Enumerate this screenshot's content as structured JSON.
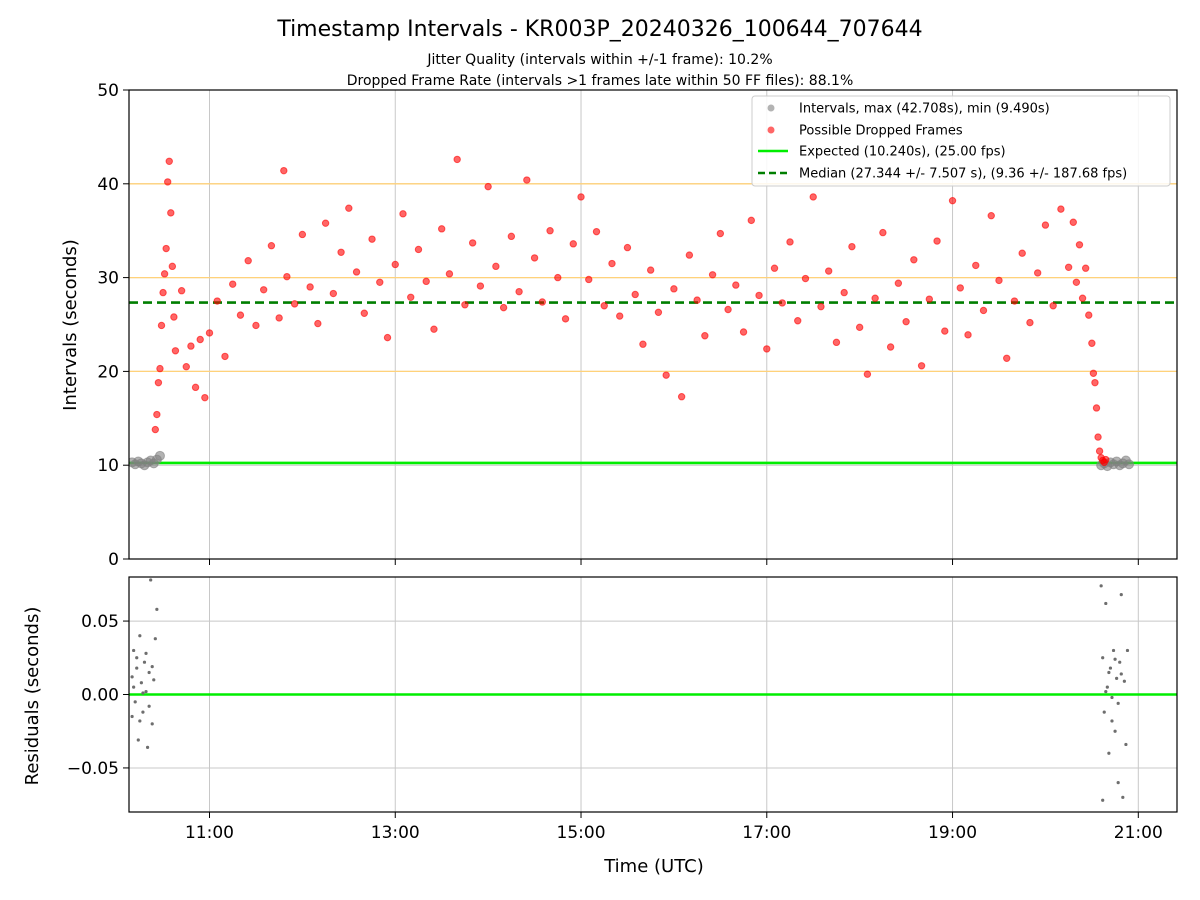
{
  "title": "Timestamp Intervals - KR003P_20240326_100644_707644",
  "subtitle1": "Jitter Quality (intervals within +/-1 frame): 10.2%",
  "subtitle2": "Dropped Frame Rate (intervals >1 frames late within 50 FF files): 88.1%",
  "colors": {
    "normal": "#808080",
    "dropped": "#ff0000",
    "expected": "#00ee00",
    "median": "#007f00",
    "threshold": "#ffd27a",
    "grid": "#c8c8c8"
  },
  "chart_data": [
    {
      "type": "scatter",
      "xlabel": "",
      "ylabel": "Intervals (seconds)",
      "ylim": [
        0,
        50
      ],
      "yticks": [
        "0",
        "10",
        "20",
        "30",
        "40",
        "50"
      ],
      "xlim": [
        "10:08",
        "21:25"
      ],
      "xticks": [
        "11:00",
        "13:00",
        "15:00",
        "17:00",
        "19:00",
        "21:00"
      ],
      "grid": true,
      "legend_position": "top-right",
      "legend": [
        "Intervals, max (42.708s), min (9.490s)",
        "Possible Dropped Frames",
        "Expected (10.240s), (25.00 fps)",
        "Median (27.344 +/- 7.507 s), (9.36 +/- 187.68 fps)"
      ],
      "expected_interval": 10.24,
      "median_interval": 27.344,
      "threshold_lines": [
        20,
        30,
        40
      ],
      "series": [
        {
          "name": "Intervals, max (42.708s), min (9.490s)",
          "points": [
            [
              "10:10",
              10.3
            ],
            [
              "10:12",
              10.1
            ],
            [
              "10:14",
              10.4
            ],
            [
              "10:16",
              10.2
            ],
            [
              "10:18",
              10.0
            ],
            [
              "10:20",
              10.3
            ],
            [
              "10:22",
              10.5
            ],
            [
              "10:24",
              10.2
            ],
            [
              "10:26",
              10.6
            ],
            [
              "10:28",
              11.0
            ],
            [
              "20:36",
              10.0
            ],
            [
              "20:38",
              10.2
            ],
            [
              "20:40",
              9.9
            ],
            [
              "20:42",
              10.3
            ],
            [
              "20:44",
              10.1
            ],
            [
              "20:46",
              10.4
            ],
            [
              "20:48",
              10.0
            ],
            [
              "20:50",
              10.2
            ],
            [
              "20:52",
              10.5
            ],
            [
              "20:54",
              10.1
            ]
          ]
        },
        {
          "name": "Possible Dropped Frames",
          "points": [
            [
              "10:25",
              13.8
            ],
            [
              "10:26",
              15.4
            ],
            [
              "10:27",
              18.8
            ],
            [
              "10:28",
              20.3
            ],
            [
              "10:29",
              24.9
            ],
            [
              "10:30",
              28.4
            ],
            [
              "10:31",
              30.4
            ],
            [
              "10:32",
              33.1
            ],
            [
              "10:33",
              40.2
            ],
            [
              "10:34",
              42.4
            ],
            [
              "10:35",
              36.9
            ],
            [
              "10:36",
              31.2
            ],
            [
              "10:37",
              25.8
            ],
            [
              "10:38",
              22.2
            ],
            [
              "10:42",
              28.6
            ],
            [
              "10:45",
              20.5
            ],
            [
              "10:48",
              22.7
            ],
            [
              "10:51",
              18.3
            ],
            [
              "10:54",
              23.4
            ],
            [
              "10:57",
              17.2
            ],
            [
              "11:00",
              24.1
            ],
            [
              "11:05",
              27.5
            ],
            [
              "11:10",
              21.6
            ],
            [
              "11:15",
              29.3
            ],
            [
              "11:20",
              26.0
            ],
            [
              "11:25",
              31.8
            ],
            [
              "11:30",
              24.9
            ],
            [
              "11:35",
              28.7
            ],
            [
              "11:40",
              33.4
            ],
            [
              "11:45",
              25.7
            ],
            [
              "11:48",
              41.4
            ],
            [
              "11:50",
              30.1
            ],
            [
              "11:55",
              27.2
            ],
            [
              "12:00",
              34.6
            ],
            [
              "12:05",
              29.0
            ],
            [
              "12:10",
              25.1
            ],
            [
              "12:15",
              35.8
            ],
            [
              "12:20",
              28.3
            ],
            [
              "12:25",
              32.7
            ],
            [
              "12:30",
              37.4
            ],
            [
              "12:35",
              30.6
            ],
            [
              "12:40",
              26.2
            ],
            [
              "12:45",
              34.1
            ],
            [
              "12:50",
              29.5
            ],
            [
              "12:55",
              23.6
            ],
            [
              "13:00",
              31.4
            ],
            [
              "13:05",
              36.8
            ],
            [
              "13:10",
              27.9
            ],
            [
              "13:15",
              33.0
            ],
            [
              "13:20",
              29.6
            ],
            [
              "13:25",
              24.5
            ],
            [
              "13:30",
              35.2
            ],
            [
              "13:35",
              30.4
            ],
            [
              "13:40",
              42.6
            ],
            [
              "13:45",
              27.1
            ],
            [
              "13:50",
              33.7
            ],
            [
              "13:55",
              29.1
            ],
            [
              "14:00",
              39.7
            ],
            [
              "14:05",
              31.2
            ],
            [
              "14:10",
              26.8
            ],
            [
              "14:15",
              34.4
            ],
            [
              "14:20",
              28.5
            ],
            [
              "14:25",
              40.4
            ],
            [
              "14:30",
              32.1
            ],
            [
              "14:35",
              27.4
            ],
            [
              "14:40",
              35.0
            ],
            [
              "14:45",
              30.0
            ],
            [
              "14:50",
              25.6
            ],
            [
              "14:55",
              33.6
            ],
            [
              "15:00",
              38.6
            ],
            [
              "15:05",
              29.8
            ],
            [
              "15:10",
              34.9
            ],
            [
              "15:15",
              27.0
            ],
            [
              "15:20",
              31.5
            ],
            [
              "15:25",
              25.9
            ],
            [
              "15:30",
              33.2
            ],
            [
              "15:35",
              28.2
            ],
            [
              "15:40",
              22.9
            ],
            [
              "15:45",
              30.8
            ],
            [
              "15:50",
              26.3
            ],
            [
              "15:55",
              19.6
            ],
            [
              "16:00",
              28.8
            ],
            [
              "16:05",
              17.3
            ],
            [
              "16:10",
              32.4
            ],
            [
              "16:15",
              27.6
            ],
            [
              "16:20",
              23.8
            ],
            [
              "16:25",
              30.3
            ],
            [
              "16:30",
              34.7
            ],
            [
              "16:35",
              26.6
            ],
            [
              "16:40",
              29.2
            ],
            [
              "16:45",
              24.2
            ],
            [
              "16:50",
              36.1
            ],
            [
              "16:55",
              28.1
            ],
            [
              "17:00",
              22.4
            ],
            [
              "17:05",
              31.0
            ],
            [
              "17:10",
              27.3
            ],
            [
              "17:15",
              33.8
            ],
            [
              "17:20",
              25.4
            ],
            [
              "17:25",
              29.9
            ],
            [
              "17:30",
              38.6
            ],
            [
              "17:35",
              26.9
            ],
            [
              "17:40",
              30.7
            ],
            [
              "17:45",
              23.1
            ],
            [
              "17:50",
              28.4
            ],
            [
              "17:55",
              33.3
            ],
            [
              "18:00",
              24.7
            ],
            [
              "18:05",
              19.7
            ],
            [
              "18:10",
              27.8
            ],
            [
              "18:15",
              34.8
            ],
            [
              "18:20",
              22.6
            ],
            [
              "18:25",
              29.4
            ],
            [
              "18:30",
              25.3
            ],
            [
              "18:35",
              31.9
            ],
            [
              "18:40",
              20.6
            ],
            [
              "18:45",
              27.7
            ],
            [
              "18:50",
              33.9
            ],
            [
              "18:55",
              24.3
            ],
            [
              "19:00",
              38.2
            ],
            [
              "19:05",
              28.9
            ],
            [
              "19:10",
              23.9
            ],
            [
              "19:15",
              31.3
            ],
            [
              "19:20",
              26.5
            ],
            [
              "19:25",
              36.6
            ],
            [
              "19:30",
              29.7
            ],
            [
              "19:35",
              21.4
            ],
            [
              "19:40",
              27.5
            ],
            [
              "19:45",
              32.6
            ],
            [
              "19:50",
              25.2
            ],
            [
              "19:55",
              30.5
            ],
            [
              "20:00",
              35.6
            ],
            [
              "20:05",
              27.0
            ],
            [
              "20:10",
              37.3
            ],
            [
              "20:15",
              31.1
            ],
            [
              "20:18",
              35.9
            ],
            [
              "20:20",
              29.5
            ],
            [
              "20:22",
              33.5
            ],
            [
              "20:24",
              27.8
            ],
            [
              "20:26",
              31.0
            ],
            [
              "20:28",
              26.0
            ],
            [
              "20:30",
              23.0
            ],
            [
              "20:31",
              19.8
            ],
            [
              "20:32",
              18.8
            ],
            [
              "20:33",
              16.1
            ],
            [
              "20:34",
              13.0
            ],
            [
              "20:35",
              11.5
            ],
            [
              "20:36",
              10.8
            ],
            [
              "20:37",
              10.5
            ],
            [
              "20:38",
              10.3
            ],
            [
              "20:39",
              10.6
            ]
          ]
        }
      ]
    },
    {
      "type": "scatter",
      "xlabel": "Time (UTC)",
      "ylabel": "Residuals (seconds)",
      "ylim": [
        -0.08,
        0.08
      ],
      "yticks": [
        "−0.05",
        "0.00",
        "0.05"
      ],
      "xlim": [
        "10:08",
        "21:25"
      ],
      "xticks": [
        "11:00",
        "13:00",
        "15:00",
        "17:00",
        "19:00",
        "21:00"
      ],
      "grid": true,
      "reference_line": 0.0,
      "series": [
        {
          "name": "",
          "points": [
            [
              "10:10",
              0.012
            ],
            [
              "10:11",
              0.03
            ],
            [
              "10:12",
              -0.005
            ],
            [
              "10:13",
              0.018
            ],
            [
              "10:14",
              -0.031
            ],
            [
              "10:15",
              0.04
            ],
            [
              "10:16",
              0.008
            ],
            [
              "10:17",
              -0.012
            ],
            [
              "10:18",
              0.022
            ],
            [
              "10:19",
              0.002
            ],
            [
              "10:20",
              -0.036
            ],
            [
              "10:21",
              0.015
            ],
            [
              "10:22",
              0.078
            ],
            [
              "10:23",
              -0.02
            ],
            [
              "10:24",
              0.01
            ],
            [
              "10:25",
              0.038
            ],
            [
              "10:26",
              0.058
            ],
            [
              "10:11",
              0.005
            ],
            [
              "10:13",
              0.025
            ],
            [
              "10:15",
              -0.018
            ],
            [
              "10:17",
              0.001
            ],
            [
              "10:19",
              0.028
            ],
            [
              "10:21",
              -0.008
            ],
            [
              "10:23",
              0.019
            ],
            [
              "10:10",
              -0.015
            ],
            [
              "20:36",
              0.074
            ],
            [
              "20:37",
              0.025
            ],
            [
              "20:38",
              -0.012
            ],
            [
              "20:39",
              0.062
            ],
            [
              "20:40",
              0.005
            ],
            [
              "20:41",
              -0.04
            ],
            [
              "20:42",
              0.018
            ],
            [
              "20:43",
              -0.002
            ],
            [
              "20:44",
              0.03
            ],
            [
              "20:45",
              -0.025
            ],
            [
              "20:46",
              0.011
            ],
            [
              "20:47",
              -0.06
            ],
            [
              "20:48",
              0.022
            ],
            [
              "20:49",
              0.068
            ],
            [
              "20:50",
              -0.07
            ],
            [
              "20:51",
              0.009
            ],
            [
              "20:52",
              -0.034
            ],
            [
              "20:53",
              0.03
            ],
            [
              "20:37",
              -0.072
            ],
            [
              "20:39",
              0.002
            ],
            [
              "20:41",
              0.015
            ],
            [
              "20:43",
              -0.018
            ],
            [
              "20:45",
              0.024
            ],
            [
              "20:47",
              -0.006
            ],
            [
              "20:49",
              0.014
            ]
          ]
        }
      ]
    }
  ]
}
